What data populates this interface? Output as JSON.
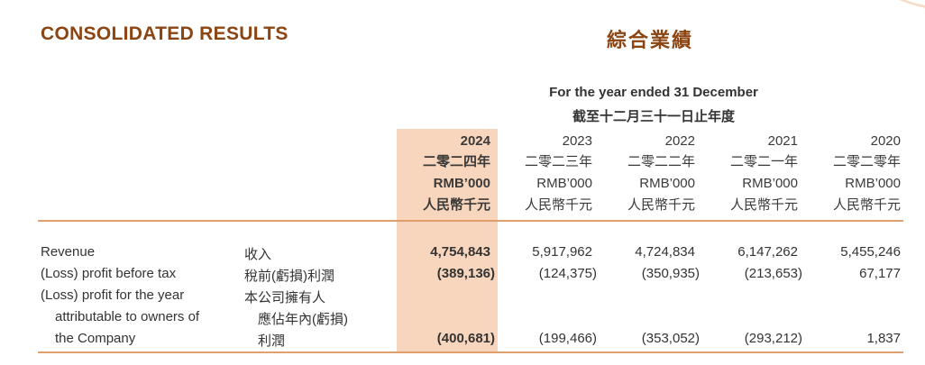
{
  "title_en": "CONSOLIDATED RESULTS",
  "title_zh": "綜合業績",
  "period_en": "For the year ended 31 December",
  "period_zh": "截至十二月三十一日止年度",
  "columns": [
    {
      "year": "2024",
      "year_zh": "二零二四年",
      "unit": "RMB’000",
      "unit_zh": "人民幣千元"
    },
    {
      "year": "2023",
      "year_zh": "二零二三年",
      "unit": "RMB’000",
      "unit_zh": "人民幣千元"
    },
    {
      "year": "2022",
      "year_zh": "二零二二年",
      "unit": "RMB’000",
      "unit_zh": "人民幣千元"
    },
    {
      "year": "2021",
      "year_zh": "二零二一年",
      "unit": "RMB’000",
      "unit_zh": "人民幣千元"
    },
    {
      "year": "2020",
      "year_zh": "二零二零年",
      "unit": "RMB’000",
      "unit_zh": "人民幣千元"
    }
  ],
  "rows": [
    {
      "label_en": [
        "Revenue"
      ],
      "label_zh": [
        "收入"
      ],
      "values": [
        "4,754,843",
        "5,917,962",
        "4,724,834",
        "6,147,262",
        "5,455,246"
      ]
    },
    {
      "label_en": [
        "(Loss) profit before tax"
      ],
      "label_zh": [
        "稅前(虧損)利潤"
      ],
      "values": [
        "(389,136)",
        "(124,375)",
        "(350,935)",
        "(213,653)",
        "67,177"
      ]
    },
    {
      "label_en": [
        "(Loss) profit for the year",
        "attributable to owners of",
        "the Company"
      ],
      "label_zh": [
        "本公司擁有人",
        "應佔年內(虧損)",
        "利潤"
      ],
      "values": [
        "(400,681)",
        "(199,466)",
        "(353,052)",
        "(293,212)",
        "1,837"
      ]
    }
  ]
}
